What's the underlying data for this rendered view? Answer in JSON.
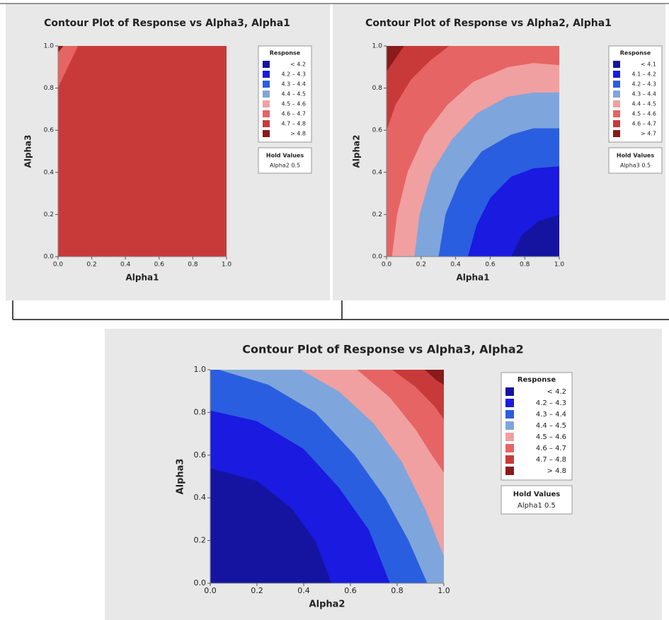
{
  "chart_data": [
    {
      "type": "contour",
      "title": "Contour Plot of Response vs Alpha3, Alpha1",
      "xlabel": "Alpha1",
      "ylabel": "Alpha3",
      "xlim": [
        0,
        1
      ],
      "ylim": [
        0,
        1
      ],
      "xticks": [
        {
          "value": 0,
          "label": "0.0"
        },
        {
          "value": 0.2,
          "label": "0.2"
        },
        {
          "value": 0.4,
          "label": "0.4"
        },
        {
          "value": 0.6,
          "label": "0.6"
        },
        {
          "value": 0.8,
          "label": "0.8"
        },
        {
          "value": 1,
          "label": "1.0"
        }
      ],
      "yticks": [
        {
          "value": 0,
          "label": "0.0"
        },
        {
          "value": 0.2,
          "label": "0.2"
        },
        {
          "value": 0.4,
          "label": "0.4"
        },
        {
          "value": 0.6,
          "label": "0.6"
        },
        {
          "value": 0.8,
          "label": "0.8"
        },
        {
          "value": 1,
          "label": "1.0"
        }
      ],
      "legend_title": "Response",
      "bands": [
        {
          "label": "< 4.2",
          "color": "#1414a0"
        },
        {
          "label": "4.2 – 4.3",
          "color": "#1a1ae0"
        },
        {
          "label": "4.3 – 4.4",
          "color": "#2a5ee0"
        },
        {
          "label": "4.4 – 4.5",
          "color": "#7ea6dc"
        },
        {
          "label": "4.5 – 4.6",
          "color": "#f0a0a0"
        },
        {
          "label": "4.6 – 4.7",
          "color": "#e66464"
        },
        {
          "label": "4.7 – 4.8",
          "color": "#c83a3a"
        },
        {
          "label": "> 4.8",
          "color": "#8b1a1a"
        }
      ],
      "contours": [
        {
          "x": [
            0.48,
            0.55,
            0.65,
            0.8,
            1
          ],
          "y": [
            0,
            0.15,
            0.28,
            0.37,
            0.41
          ]
        },
        {
          "x": [
            0.24,
            0.3,
            0.42,
            0.6,
            0.8,
            1
          ],
          "y": [
            0,
            0.2,
            0.4,
            0.56,
            0.64,
            0.67
          ]
        },
        {
          "x": [
            0.07,
            0.12,
            0.22,
            0.38,
            0.6,
            0.8,
            1
          ],
          "y": [
            0,
            0.2,
            0.44,
            0.64,
            0.79,
            0.85,
            0.87
          ]
        },
        {
          "x": [
            0,
            0.06,
            0.16,
            0.3,
            0.45,
            0.52
          ],
          "y": [
            0.29,
            0.45,
            0.64,
            0.82,
            0.95,
            1
          ]
        },
        {
          "x": [
            0,
            0.08,
            0.18,
            0.28
          ],
          "y": [
            0.58,
            0.72,
            0.88,
            1
          ]
        },
        {
          "x": [
            0,
            0.06,
            0.12
          ],
          "y": [
            0.8,
            0.9,
            1
          ]
        },
        {
          "x": [
            0,
            0.03
          ],
          "y": [
            0.97,
            1
          ]
        }
      ],
      "hold_title": "Hold Values",
      "hold": "Alpha2  0.5"
    },
    {
      "type": "contour",
      "title": "Contour Plot of Response vs Alpha2, Alpha1",
      "xlabel": "Alpha1",
      "ylabel": "Alpha2",
      "xlim": [
        0,
        1
      ],
      "ylim": [
        0,
        1
      ],
      "xticks": [
        {
          "value": 0,
          "label": "0.0"
        },
        {
          "value": 0.2,
          "label": "0.2"
        },
        {
          "value": 0.4,
          "label": "0.4"
        },
        {
          "value": 0.6,
          "label": "0.6"
        },
        {
          "value": 0.8,
          "label": "0.8"
        },
        {
          "value": 1,
          "label": "1.0"
        }
      ],
      "yticks": [
        {
          "value": 0,
          "label": "0.0"
        },
        {
          "value": 0.2,
          "label": "0.2"
        },
        {
          "value": 0.4,
          "label": "0.4"
        },
        {
          "value": 0.6,
          "label": "0.6"
        },
        {
          "value": 0.8,
          "label": "0.8"
        },
        {
          "value": 1,
          "label": "1.0"
        }
      ],
      "legend_title": "Response",
      "bands": [
        {
          "label": "< 4.1",
          "color": "#1414a0"
        },
        {
          "label": "4.1 – 4.2",
          "color": "#1a1ae0"
        },
        {
          "label": "4.2 – 4.3",
          "color": "#2a5ee0"
        },
        {
          "label": "4.3 – 4.4",
          "color": "#7ea6dc"
        },
        {
          "label": "4.4 – 4.5",
          "color": "#f0a0a0"
        },
        {
          "label": "4.5 – 4.6",
          "color": "#e66464"
        },
        {
          "label": "4.6 – 4.7",
          "color": "#c83a3a"
        },
        {
          "label": "> 4.7",
          "color": "#8b1a1a"
        }
      ],
      "contours": [
        {
          "x": [
            0.72,
            0.78,
            0.88,
            1
          ],
          "y": [
            0,
            0.1,
            0.17,
            0.2
          ]
        },
        {
          "x": [
            0.47,
            0.52,
            0.6,
            0.72,
            0.85,
            1
          ],
          "y": [
            0,
            0.15,
            0.28,
            0.38,
            0.42,
            0.43
          ]
        },
        {
          "x": [
            0.3,
            0.34,
            0.42,
            0.55,
            0.72,
            0.85,
            1
          ],
          "y": [
            0,
            0.2,
            0.36,
            0.5,
            0.58,
            0.61,
            0.61
          ]
        },
        {
          "x": [
            0.16,
            0.19,
            0.26,
            0.38,
            0.52,
            0.7,
            0.85,
            1
          ],
          "y": [
            0,
            0.2,
            0.4,
            0.56,
            0.68,
            0.76,
            0.78,
            0.78
          ]
        },
        {
          "x": [
            0.03,
            0.06,
            0.12,
            0.22,
            0.35,
            0.5,
            0.7,
            0.85,
            1
          ],
          "y": [
            0,
            0.2,
            0.4,
            0.58,
            0.72,
            0.83,
            0.9,
            0.92,
            0.91
          ]
        },
        {
          "x": [
            0,
            0.05,
            0.14,
            0.25,
            0.36
          ],
          "y": [
            0.6,
            0.72,
            0.84,
            0.93,
            1
          ]
        },
        {
          "x": [
            0,
            0.05,
            0.1
          ],
          "y": [
            0.88,
            0.94,
            1
          ]
        }
      ],
      "hold_title": "Hold Values",
      "hold": "Alpha3  0.5"
    },
    {
      "type": "contour",
      "title": "Contour Plot of Response vs Alpha3, Alpha2",
      "xlabel": "Alpha2",
      "ylabel": "Alpha3",
      "xlim": [
        0,
        1
      ],
      "ylim": [
        0,
        1
      ],
      "xticks": [
        {
          "value": 0,
          "label": "0.0"
        },
        {
          "value": 0.2,
          "label": "0.2"
        },
        {
          "value": 0.4,
          "label": "0.4"
        },
        {
          "value": 0.6,
          "label": "0.6"
        },
        {
          "value": 0.8,
          "label": "0.8"
        },
        {
          "value": 1,
          "label": "1.0"
        }
      ],
      "yticks": [
        {
          "value": 0,
          "label": "0.0"
        },
        {
          "value": 0.2,
          "label": "0.2"
        },
        {
          "value": 0.4,
          "label": "0.4"
        },
        {
          "value": 0.6,
          "label": "0.6"
        },
        {
          "value": 0.8,
          "label": "0.8"
        },
        {
          "value": 1,
          "label": "1.0"
        }
      ],
      "legend_title": "Response",
      "bands": [
        {
          "label": "< 4.2",
          "color": "#1414a0"
        },
        {
          "label": "4.2 – 4.3",
          "color": "#1a1ae0"
        },
        {
          "label": "4.3 – 4.4",
          "color": "#2a5ee0"
        },
        {
          "label": "4.4 – 4.5",
          "color": "#7ea6dc"
        },
        {
          "label": "4.5 – 4.6",
          "color": "#f0a0a0"
        },
        {
          "label": "4.6 – 4.7",
          "color": "#e66464"
        },
        {
          "label": "4.7 – 4.8",
          "color": "#c83a3a"
        },
        {
          "label": "> 4.8",
          "color": "#8b1a1a"
        }
      ],
      "contours": [
        {
          "x": [
            0,
            0.2,
            0.35,
            0.45,
            0.52
          ],
          "y": [
            0.54,
            0.48,
            0.35,
            0.2,
            0
          ]
        },
        {
          "x": [
            0,
            0.2,
            0.4,
            0.55,
            0.68,
            0.77
          ],
          "y": [
            0.81,
            0.76,
            0.63,
            0.45,
            0.25,
            0
          ]
        },
        {
          "x": [
            0.04,
            0.25,
            0.45,
            0.62,
            0.75,
            0.85,
            0.93
          ],
          "y": [
            1,
            0.93,
            0.8,
            0.6,
            0.4,
            0.2,
            0
          ]
        },
        {
          "x": [
            0.39,
            0.55,
            0.7,
            0.82,
            0.92,
            1
          ],
          "y": [
            1,
            0.9,
            0.75,
            0.57,
            0.35,
            0.13
          ]
        },
        {
          "x": [
            0.63,
            0.77,
            0.88,
            0.95,
            1
          ],
          "y": [
            1,
            0.87,
            0.72,
            0.6,
            0.52
          ]
        },
        {
          "x": [
            0.78,
            0.88,
            0.96,
            1
          ],
          "y": [
            1,
            0.92,
            0.83,
            0.77
          ]
        },
        {
          "x": [
            0.92,
            0.97,
            1
          ],
          "y": [
            1,
            0.95,
            0.93
          ]
        }
      ],
      "hold_title": "Hold Values",
      "hold": "Alpha1  0.5"
    }
  ]
}
